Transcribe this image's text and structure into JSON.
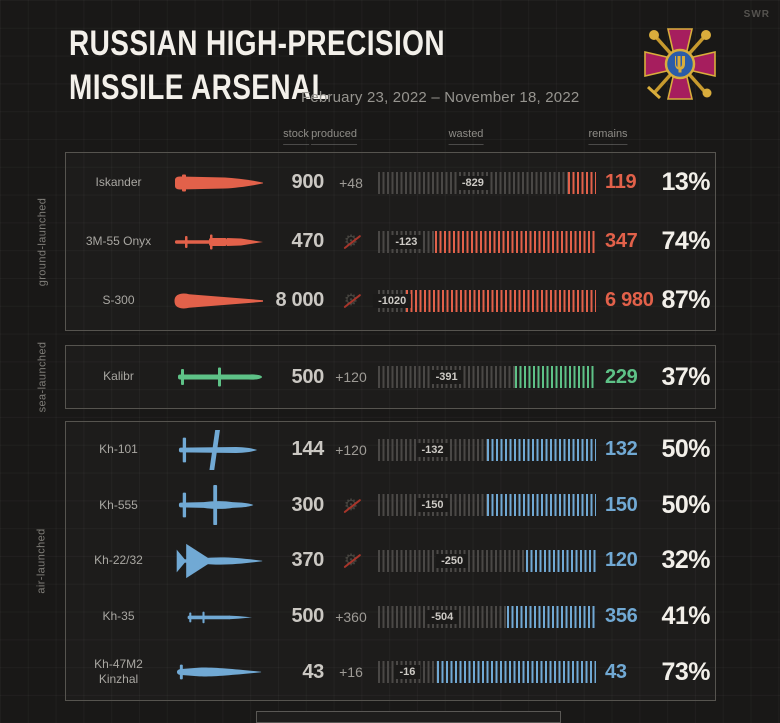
{
  "watermark": "SWR",
  "header": {
    "title_line1": "RUSSIAN HIGH-PRECISION",
    "title_line2": "MISSILE ARSENAL",
    "date_range": "February 23, 2022 – November 18, 2022"
  },
  "columns": {
    "stock": "stock",
    "produced": "produced",
    "wasted": "wasted",
    "remains": "remains"
  },
  "colors": {
    "ground": "#e2614a",
    "sea": "#5ec287",
    "air": "#71a9d4",
    "percent_text": "#f2efe9",
    "wasted_stripes": "#4a4846",
    "emblem_cross": "#a61e5e",
    "emblem_gold": "#d9ad3c",
    "emblem_blue": "#2b5ca8"
  },
  "chart_data": {
    "type": "bar",
    "title": "Russian high-precision missile arsenal",
    "period": "February 23, 2022 – November 18, 2022",
    "groups": [
      {
        "label": "ground-launched",
        "color_key": "ground",
        "missiles": [
          {
            "name": "Iskander",
            "icon": "iskander",
            "stock": "900",
            "produced": "+48",
            "no_production": false,
            "wasted": "-829",
            "remains": "119",
            "percent": "13%",
            "remains_pct": 13
          },
          {
            "name": "3M-55 Onyx",
            "icon": "onyx",
            "stock": "470",
            "produced": null,
            "no_production": true,
            "wasted": "-123",
            "remains": "347",
            "percent": "74%",
            "remains_pct": 74
          },
          {
            "name": "S-300",
            "icon": "s300",
            "stock": "8 000",
            "produced": null,
            "no_production": true,
            "wasted": "-1020",
            "remains": "6 980",
            "percent": "87%",
            "remains_pct": 87
          }
        ]
      },
      {
        "label": "sea-launched",
        "color_key": "sea",
        "missiles": [
          {
            "name": "Kalibr",
            "icon": "kalibr",
            "stock": "500",
            "produced": "+120",
            "no_production": false,
            "wasted": "-391",
            "remains": "229",
            "percent": "37%",
            "remains_pct": 37
          }
        ]
      },
      {
        "label": "air-launched",
        "color_key": "air",
        "missiles": [
          {
            "name": "Kh-101",
            "icon": "kh101",
            "stock": "144",
            "produced": "+120",
            "no_production": false,
            "wasted": "-132",
            "remains": "132",
            "percent": "50%",
            "remains_pct": 50
          },
          {
            "name": "Kh-555",
            "icon": "kh555",
            "stock": "300",
            "produced": null,
            "no_production": true,
            "wasted": "-150",
            "remains": "150",
            "percent": "50%",
            "remains_pct": 50
          },
          {
            "name": "Kh-22/32",
            "icon": "kh2232",
            "stock": "370",
            "produced": null,
            "no_production": true,
            "wasted": "-250",
            "remains": "120",
            "percent": "32%",
            "remains_pct": 32
          },
          {
            "name": "Kh-35",
            "icon": "kh35",
            "stock": "500",
            "produced": "+360",
            "no_production": false,
            "wasted": "-504",
            "remains": "356",
            "percent": "41%",
            "remains_pct": 41
          },
          {
            "name": "Kh-47M2\nKinzhal",
            "icon": "kinzhal",
            "stock": "43",
            "produced": "+16",
            "no_production": false,
            "wasted": "-16",
            "remains": "43",
            "percent": "73%",
            "remains_pct": 73
          }
        ]
      }
    ]
  }
}
